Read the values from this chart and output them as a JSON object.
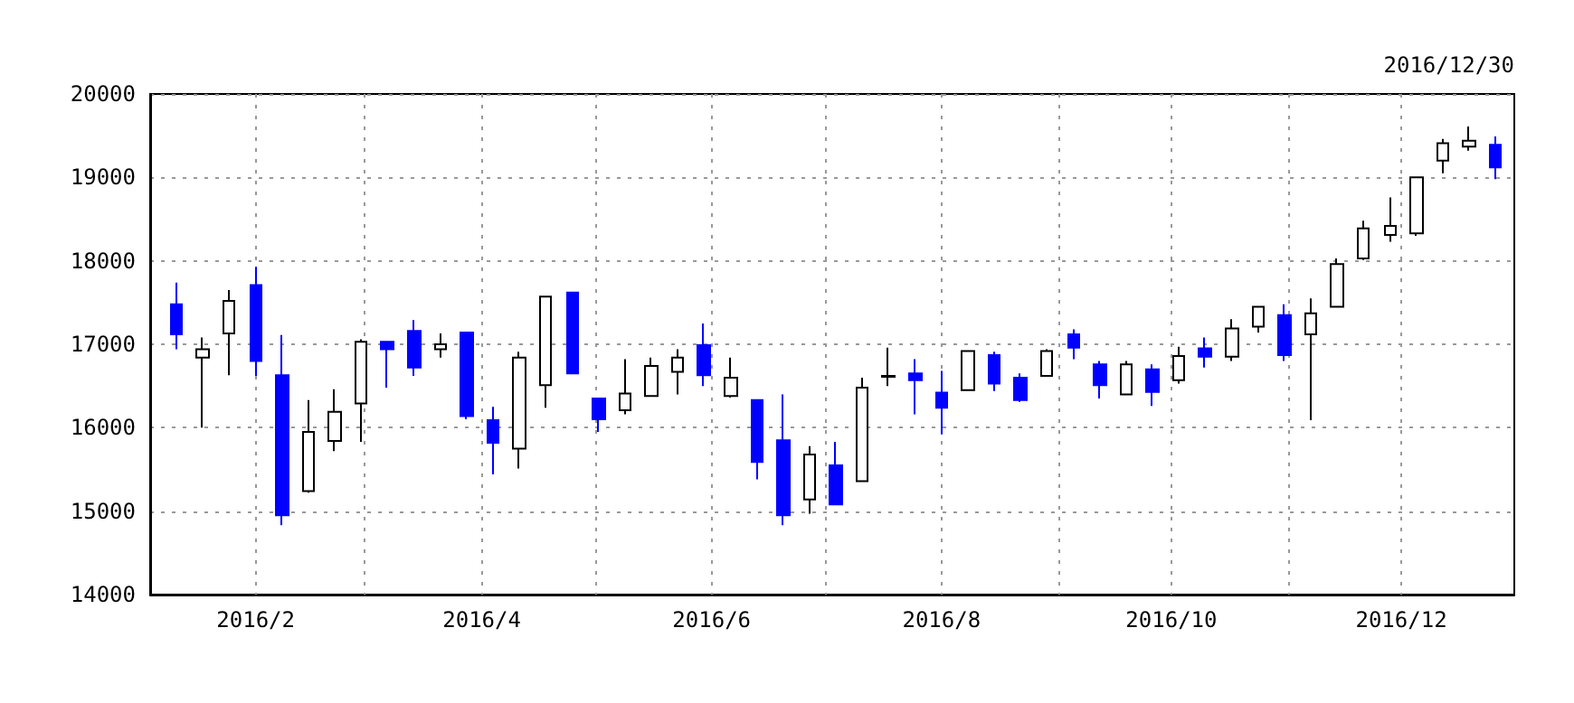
{
  "chart_data": {
    "type": "candlestick",
    "subtitle": "2016/12/30",
    "x": [
      "2016-01-11",
      "2016-01-18",
      "2016-01-25",
      "2016-02-01",
      "2016-02-08",
      "2016-02-15",
      "2016-02-22",
      "2016-02-29",
      "2016-03-07",
      "2016-03-14",
      "2016-03-21",
      "2016-03-28",
      "2016-04-04",
      "2016-04-11",
      "2016-04-18",
      "2016-04-25",
      "2016-05-02",
      "2016-05-09",
      "2016-05-16",
      "2016-05-23",
      "2016-05-30",
      "2016-06-06",
      "2016-06-13",
      "2016-06-20",
      "2016-06-27",
      "2016-07-04",
      "2016-07-11",
      "2016-07-18",
      "2016-07-25",
      "2016-08-01",
      "2016-08-08",
      "2016-08-15",
      "2016-08-22",
      "2016-08-29",
      "2016-09-05",
      "2016-09-12",
      "2016-09-19",
      "2016-09-26",
      "2016-10-03",
      "2016-10-10",
      "2016-10-17",
      "2016-10-24",
      "2016-10-31",
      "2016-11-07",
      "2016-11-14",
      "2016-11-21",
      "2016-11-28",
      "2016-12-05",
      "2016-12-12",
      "2016-12-19",
      "2016-12-26"
    ],
    "ohlc": [
      [
        17480,
        17740,
        16940,
        17120
      ],
      [
        16840,
        17080,
        16000,
        16940
      ],
      [
        17130,
        17650,
        16630,
        17520
      ],
      [
        17710,
        17930,
        16620,
        16800
      ],
      [
        16630,
        17110,
        14830,
        14950
      ],
      [
        15240,
        16330,
        15220,
        15950
      ],
      [
        15840,
        16460,
        15720,
        16190
      ],
      [
        16290,
        17060,
        15830,
        17030
      ],
      [
        17030,
        17030,
        16480,
        16940
      ],
      [
        17160,
        17290,
        16620,
        16720
      ],
      [
        16940,
        17130,
        16840,
        17000
      ],
      [
        17140,
        17140,
        16100,
        16140
      ],
      [
        16090,
        16250,
        15440,
        15820
      ],
      [
        15750,
        16910,
        15510,
        16840
      ],
      [
        16510,
        17570,
        16240,
        17570
      ],
      [
        17620,
        17620,
        16650,
        16650
      ],
      [
        16350,
        16350,
        15950,
        16100
      ],
      [
        16210,
        16820,
        16160,
        16410
      ],
      [
        16380,
        16840,
        16380,
        16740
      ],
      [
        16670,
        16940,
        16400,
        16840
      ],
      [
        16990,
        17250,
        16500,
        16630
      ],
      [
        16380,
        16840,
        16360,
        16600
      ],
      [
        16330,
        16330,
        15380,
        15590
      ],
      [
        15850,
        16400,
        14830,
        14950
      ],
      [
        15140,
        15780,
        14970,
        15680
      ],
      [
        15550,
        15830,
        15080,
        15080
      ],
      [
        15360,
        16600,
        15360,
        16480
      ],
      [
        16610,
        16960,
        16500,
        16620
      ],
      [
        16650,
        16820,
        16160,
        16570
      ],
      [
        16420,
        16680,
        15920,
        16240
      ],
      [
        16450,
        16920,
        16450,
        16920
      ],
      [
        16870,
        16910,
        16440,
        16530
      ],
      [
        16600,
        16650,
        16310,
        16330
      ],
      [
        16620,
        16940,
        16620,
        16920
      ],
      [
        17120,
        17180,
        16820,
        16960
      ],
      [
        16760,
        16800,
        16350,
        16510
      ],
      [
        16400,
        16800,
        16400,
        16760
      ],
      [
        16700,
        16760,
        16260,
        16430
      ],
      [
        16570,
        16970,
        16530,
        16860
      ],
      [
        16950,
        17080,
        16720,
        16850
      ],
      [
        16850,
        17300,
        16800,
        17190
      ],
      [
        17210,
        17460,
        17140,
        17450
      ],
      [
        17350,
        17480,
        16800,
        16870
      ],
      [
        17120,
        17550,
        16090,
        17370
      ],
      [
        17450,
        18030,
        17450,
        17960
      ],
      [
        18030,
        18480,
        18010,
        18390
      ],
      [
        18310,
        18760,
        18230,
        18420
      ],
      [
        18330,
        19010,
        18300,
        19000
      ],
      [
        19200,
        19460,
        19050,
        19410
      ],
      [
        19370,
        19610,
        19320,
        19440
      ],
      [
        19390,
        19490,
        18980,
        19120
      ]
    ],
    "colors": [
      "#0000ff",
      "#ffffff",
      "#ffffff",
      "#0000ff",
      "#0000ff",
      "#ffffff",
      "#ffffff",
      "#ffffff",
      "#0000ff",
      "#0000ff",
      "#ffffff",
      "#0000ff",
      "#0000ff",
      "#ffffff",
      "#ffffff",
      "#0000ff",
      "#0000ff",
      "#ffffff",
      "#ffffff",
      "#ffffff",
      "#0000ff",
      "#ffffff",
      "#0000ff",
      "#0000ff",
      "#ffffff",
      "#0000ff",
      "#ffffff",
      "#ffffff",
      "#0000ff",
      "#0000ff",
      "#ffffff",
      "#0000ff",
      "#0000ff",
      "#ffffff",
      "#0000ff",
      "#0000ff",
      "#ffffff",
      "#0000ff",
      "#ffffff",
      "#0000ff",
      "#ffffff",
      "#ffffff",
      "#0000ff",
      "#ffffff",
      "#ffffff",
      "#ffffff",
      "#ffffff",
      "#ffffff",
      "#ffffff",
      "#ffffff",
      "#0000ff"
    ],
    "xlim": [
      "2016-01-04",
      "2016-12-31"
    ],
    "xticks": [
      {
        "value": "2016-02-01",
        "label": "2016/2"
      },
      {
        "value": "2016-03-01",
        "label": null
      },
      {
        "value": "2016-04-01",
        "label": "2016/4"
      },
      {
        "value": "2016-05-01",
        "label": null
      },
      {
        "value": "2016-06-01",
        "label": "2016/6"
      },
      {
        "value": "2016-07-01",
        "label": null
      },
      {
        "value": "2016-08-01",
        "label": "2016/8"
      },
      {
        "value": "2016-09-01",
        "label": null
      },
      {
        "value": "2016-10-01",
        "label": "2016/10"
      },
      {
        "value": "2016-11-01",
        "label": null
      },
      {
        "value": "2016-12-01",
        "label": "2016/12"
      }
    ],
    "ylim": [
      14000,
      20000
    ],
    "yticks": [
      14000,
      15000,
      16000,
      17000,
      18000,
      19000,
      20000
    ],
    "grid": true
  }
}
